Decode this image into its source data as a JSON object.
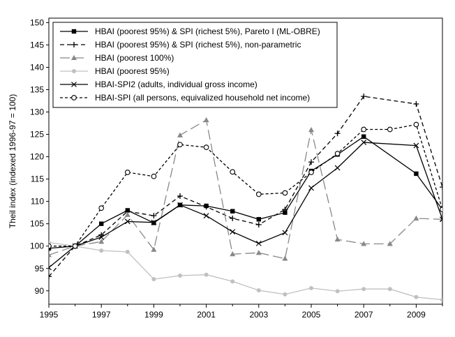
{
  "chart_data": {
    "type": "line",
    "title": "",
    "xlabel": "",
    "ylabel": "Theil index (indexed 1996-97 = 100)",
    "xlim": [
      1995,
      2010
    ],
    "ylim": [
      87,
      151
    ],
    "x_ticks": [
      1995,
      1997,
      1999,
      2001,
      2003,
      2005,
      2007,
      2009
    ],
    "y_ticks": [
      90,
      95,
      100,
      105,
      110,
      115,
      120,
      125,
      130,
      135,
      140,
      145,
      150
    ],
    "grid": false,
    "legend_position": "top-left",
    "series": [
      {
        "name": "HBAI (poorest 95%) & SPI (richest 5%), Pareto I (ML-OBRE)",
        "color": "#000000",
        "dash": "solid",
        "marker": "square",
        "x": [
          1995,
          1996,
          1997,
          1998,
          1999,
          2000,
          2001,
          2002,
          2003,
          2004,
          2005,
          2006,
          2007,
          2009,
          2010
        ],
        "values": [
          99.5,
          100,
          105,
          108,
          105.2,
          109.2,
          109,
          107.8,
          106,
          107.5,
          116.8,
          120.5,
          124.5,
          116.2,
          108.2
        ]
      },
      {
        "name": "HBAI (poorest 95%) & SPI (richest 5%), non-parametric",
        "color": "#000000",
        "dash": "dashed",
        "marker": "plus",
        "x": [
          1995,
          1996,
          1997,
          1998,
          1999,
          2000,
          2001,
          2002,
          2003,
          2004,
          2005,
          2006,
          2007,
          2009,
          2010
        ],
        "values": [
          93.2,
          100,
          102.5,
          107.8,
          106.8,
          111.2,
          108.8,
          106.2,
          104.8,
          108.2,
          118.8,
          125.2,
          133.5,
          131.8,
          113.2
        ]
      },
      {
        "name": "HBAI (poorest 100%)",
        "color": "#888888",
        "dash": "longdash",
        "marker": "triangle",
        "x": [
          1995,
          1996,
          1997,
          1998,
          1999,
          2000,
          2001,
          2002,
          2003,
          2004,
          2005,
          2006,
          2007,
          2008,
          2009,
          2010
        ],
        "values": [
          98,
          100,
          101,
          107,
          99.2,
          124.8,
          128.2,
          98.2,
          98.5,
          97.2,
          126,
          101.5,
          100.5,
          100.5,
          106.2,
          106
        ]
      },
      {
        "name": "HBAI (poorest 95%)",
        "color": "#c0c0c0",
        "dash": "solid",
        "marker": "circle",
        "x": [
          1995,
          1996,
          1997,
          1998,
          1999,
          2000,
          2001,
          2002,
          2003,
          2004,
          2005,
          2006,
          2007,
          2008,
          2009,
          2010
        ],
        "values": [
          100.8,
          100,
          99,
          98.7,
          92.6,
          93.4,
          93.6,
          92.1,
          90.1,
          89.2,
          90.6,
          89.9,
          90.4,
          90.4,
          88.6,
          88
        ]
      },
      {
        "name": "HBAI-SPI2 (adults, individual gross income)",
        "color": "#000000",
        "dash": "solid",
        "marker": "x",
        "x": [
          1995,
          1996,
          1997,
          1998,
          1999,
          2000,
          2001,
          2002,
          2003,
          2004,
          2005,
          2006,
          2007,
          2009,
          2010
        ],
        "values": [
          95.2,
          100,
          102,
          105.5,
          105.3,
          109.2,
          106.8,
          103.2,
          100.6,
          103,
          113,
          117.5,
          123.2,
          122.5,
          106
        ]
      },
      {
        "name": "HBAI-SPI (all persons, equivalized household net income)",
        "color": "#000000",
        "dash": "shortdash",
        "marker": "hollow-circle",
        "x": [
          1995,
          1996,
          1997,
          1998,
          1999,
          2000,
          2001,
          2002,
          2003,
          2004,
          2005,
          2006,
          2007,
          2008,
          2009,
          2010
        ],
        "values": [
          100,
          100,
          108.5,
          116.5,
          115.6,
          122.7,
          122.1,
          116.6,
          111.6,
          111.9,
          116.5,
          120.7,
          126.1,
          126.1,
          127.2,
          108.2
        ]
      }
    ]
  }
}
